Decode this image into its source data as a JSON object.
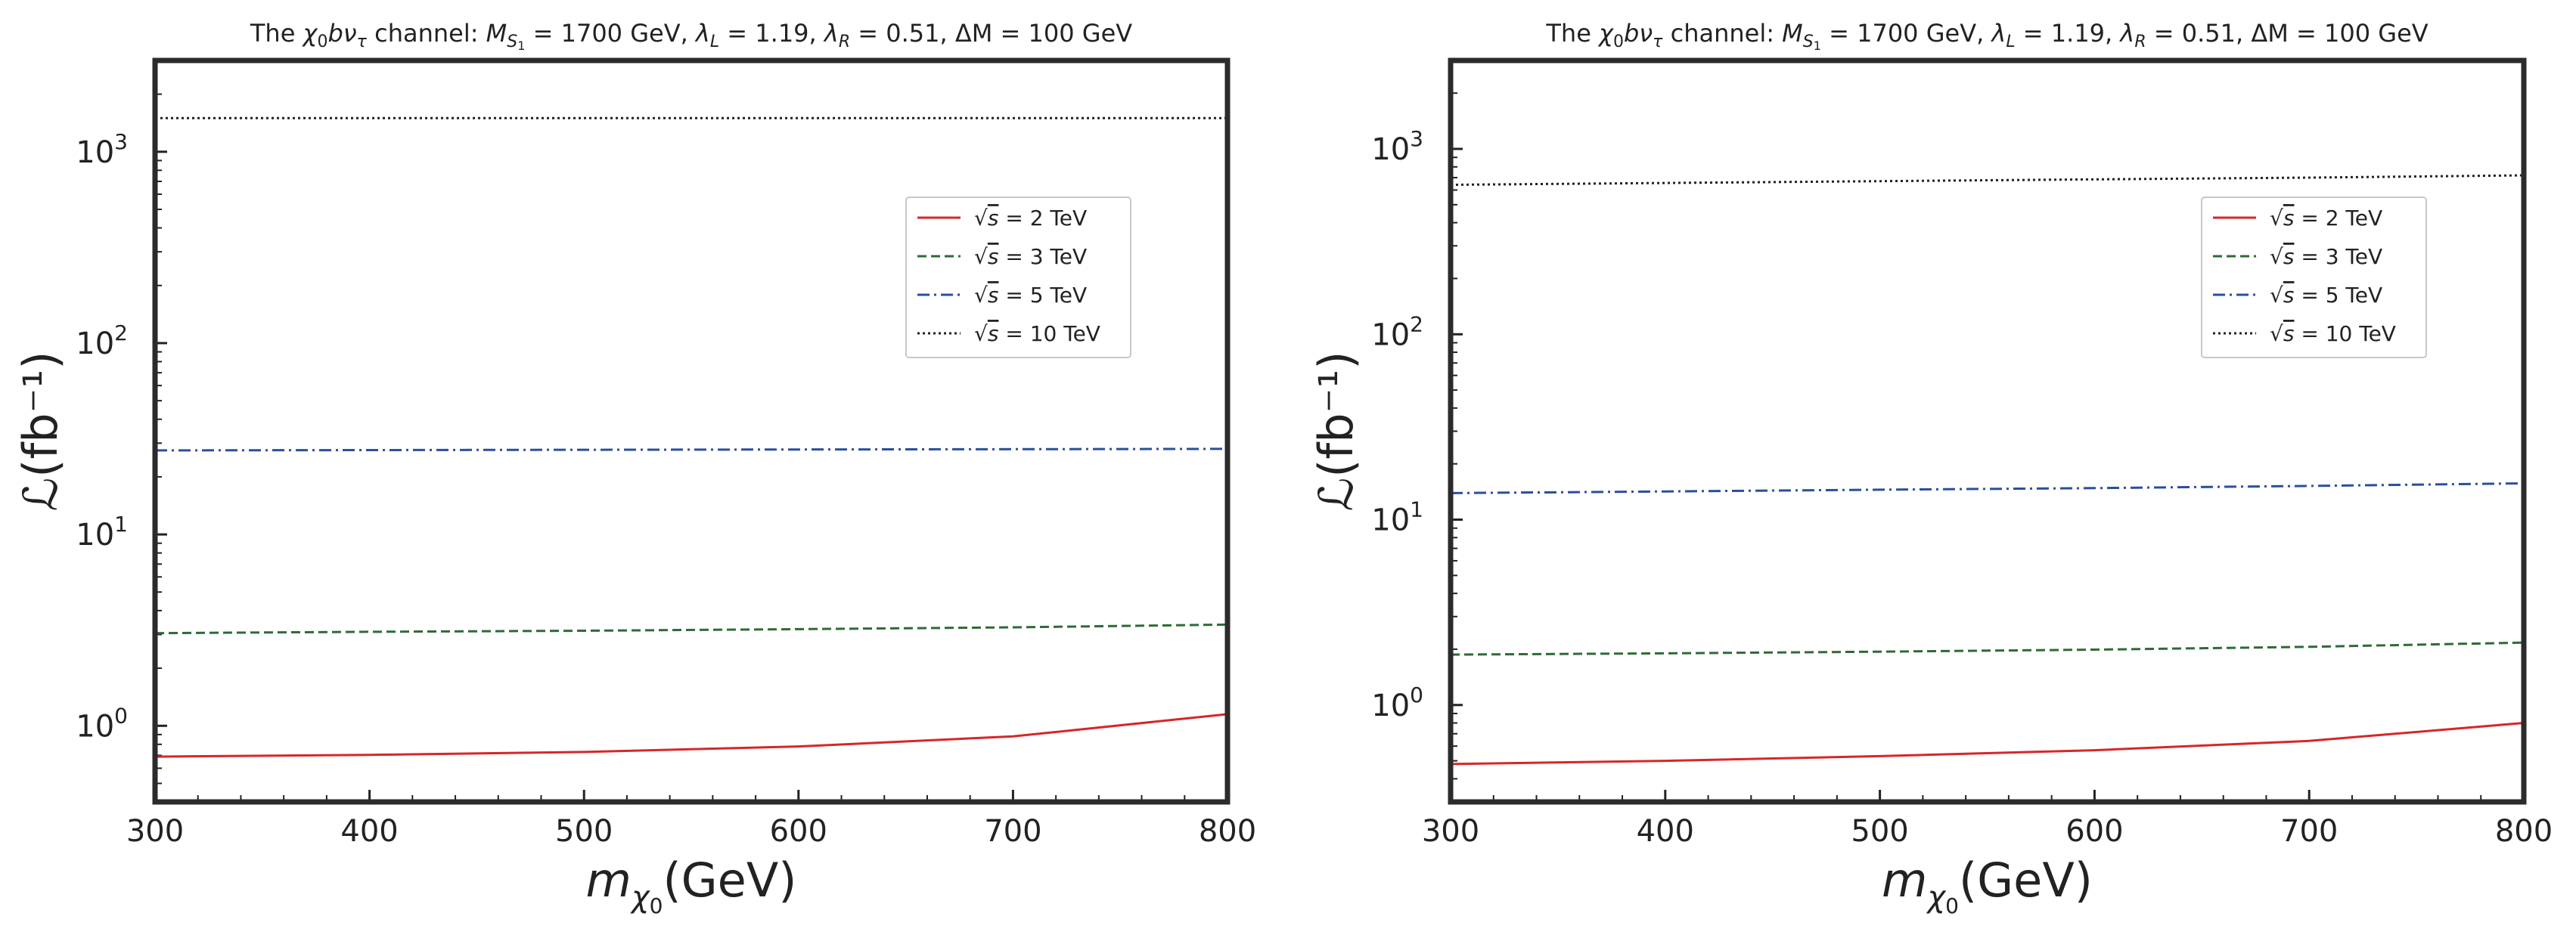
{
  "chart_data": [
    {
      "type": "line",
      "title": "The χ₀bντ channel: M_S1 = 1700 GeV,  λ_L = 1.19,  λ_R = 0.51,  ΔM = 100 GeV",
      "title_parts": {
        "prefix": "The ",
        "channel": "χ",
        "channel_sub": "0",
        "channel_mid": "bν",
        "channel_sub2": "τ",
        "suffix_label": " channel: ",
        "mass_label": "M",
        "mass_sub": "S",
        "mass_subsub": "1",
        "mass_value": " = 1700 GeV,  ",
        "lamL": "λ",
        "lamL_sub": "L",
        "lamL_value": " = 1.19,  ",
        "lamR": "λ",
        "lamR_sub": "R",
        "lamR_value": " = 0.51,  ",
        "dm_value": "ΔM = 100 GeV"
      },
      "xlabel_main": "m",
      "xlabel_sub": "χ",
      "xlabel_subsub": "0",
      "xlabel_unit": "(GeV)",
      "ylabel": "ℒ(fb⁻¹)",
      "xlim": [
        300,
        800
      ],
      "ylim": [
        0.4,
        3000
      ],
      "yscale": "log",
      "x_ticks": [
        "300",
        "400",
        "500",
        "600",
        "700",
        "800"
      ],
      "y_ticks": [
        {
          "value": 1,
          "base": "10",
          "exp": "0"
        },
        {
          "value": 10,
          "base": "10",
          "exp": "1"
        },
        {
          "value": 100,
          "base": "10",
          "exp": "2"
        },
        {
          "value": 1000,
          "base": "10",
          "exp": "3"
        }
      ],
      "legend_position": "upper-right",
      "x": [
        300,
        400,
        500,
        600,
        700,
        800
      ],
      "series": [
        {
          "name": "√s = 2 TeV",
          "legend_prefix": "√",
          "legend_var": "s",
          "legend_value": " =  2 TeV",
          "color": "#d62728",
          "style": "solid",
          "values": [
            0.69,
            0.705,
            0.73,
            0.78,
            0.88,
            1.15
          ]
        },
        {
          "name": "√s = 3 TeV",
          "legend_prefix": "√",
          "legend_var": "s",
          "legend_value": " =  3 TeV",
          "color": "#2e6b35",
          "style": "dashed",
          "values": [
            3.05,
            3.1,
            3.14,
            3.2,
            3.27,
            3.38
          ]
        },
        {
          "name": "√s = 5 TeV",
          "legend_prefix": "√",
          "legend_var": "s",
          "legend_value": " =  5 TeV",
          "color": "#2a4f9c",
          "style": "dashdot",
          "values": [
            27.5,
            27.6,
            27.7,
            27.8,
            27.9,
            28.0
          ]
        },
        {
          "name": "√s = 10 TeV",
          "legend_prefix": "√",
          "legend_var": "s",
          "legend_value": " =  10 TeV",
          "color": "#222222",
          "style": "dotted",
          "values": [
            1500,
            1500,
            1500,
            1500,
            1500,
            1500
          ]
        }
      ]
    },
    {
      "type": "line",
      "title": "The χ₀bντ channel: M_S1 = 1700 GeV,  λ_L = 1.19,  λ_R = 0.51,  ΔM = 100 GeV",
      "title_parts": {
        "prefix": "The ",
        "channel": "χ",
        "channel_sub": "0",
        "channel_mid": "bν",
        "channel_sub2": "τ",
        "suffix_label": " channel: ",
        "mass_label": "M",
        "mass_sub": "S",
        "mass_subsub": "1",
        "mass_value": " = 1700 GeV,  ",
        "lamL": "λ",
        "lamL_sub": "L",
        "lamL_value": " = 1.19,  ",
        "lamR": "λ",
        "lamR_sub": "R",
        "lamR_value": " = 0.51,  ",
        "dm_value": "ΔM = 100 GeV"
      },
      "xlabel_main": "m",
      "xlabel_sub": "χ",
      "xlabel_subsub": "0",
      "xlabel_unit": "(GeV)",
      "ylabel": "ℒ(fb⁻¹)",
      "xlim": [
        300,
        800
      ],
      "ylim": [
        0.3,
        3000
      ],
      "yscale": "log",
      "x_ticks": [
        "300",
        "400",
        "500",
        "600",
        "700",
        "800"
      ],
      "y_ticks": [
        {
          "value": 1,
          "base": "10",
          "exp": "0"
        },
        {
          "value": 10,
          "base": "10",
          "exp": "1"
        },
        {
          "value": 100,
          "base": "10",
          "exp": "2"
        },
        {
          "value": 1000,
          "base": "10",
          "exp": "3"
        }
      ],
      "legend_position": "upper-right",
      "x": [
        300,
        400,
        500,
        600,
        700,
        800
      ],
      "series": [
        {
          "name": "√s = 2 TeV",
          "legend_prefix": "√",
          "legend_var": "s",
          "legend_value": " =  2 TeV",
          "color": "#d62728",
          "style": "solid",
          "values": [
            0.48,
            0.5,
            0.53,
            0.57,
            0.64,
            0.8
          ]
        },
        {
          "name": "√s = 3 TeV",
          "legend_prefix": "√",
          "legend_var": "s",
          "legend_value": " =  3 TeV",
          "color": "#2e6b35",
          "style": "dashed",
          "values": [
            1.87,
            1.9,
            1.94,
            1.99,
            2.06,
            2.17
          ]
        },
        {
          "name": "√s = 5 TeV",
          "legend_prefix": "√",
          "legend_var": "s",
          "legend_value": " =  5 TeV",
          "color": "#2a4f9c",
          "style": "dashdot",
          "values": [
            13.9,
            14.2,
            14.5,
            14.8,
            15.2,
            15.7
          ]
        },
        {
          "name": "√s = 10 TeV",
          "legend_prefix": "√",
          "legend_var": "s",
          "legend_value": " =  10 TeV",
          "color": "#222222",
          "style": "dotted",
          "values": [
            640,
            655,
            670,
            685,
            700,
            720
          ]
        }
      ]
    }
  ]
}
